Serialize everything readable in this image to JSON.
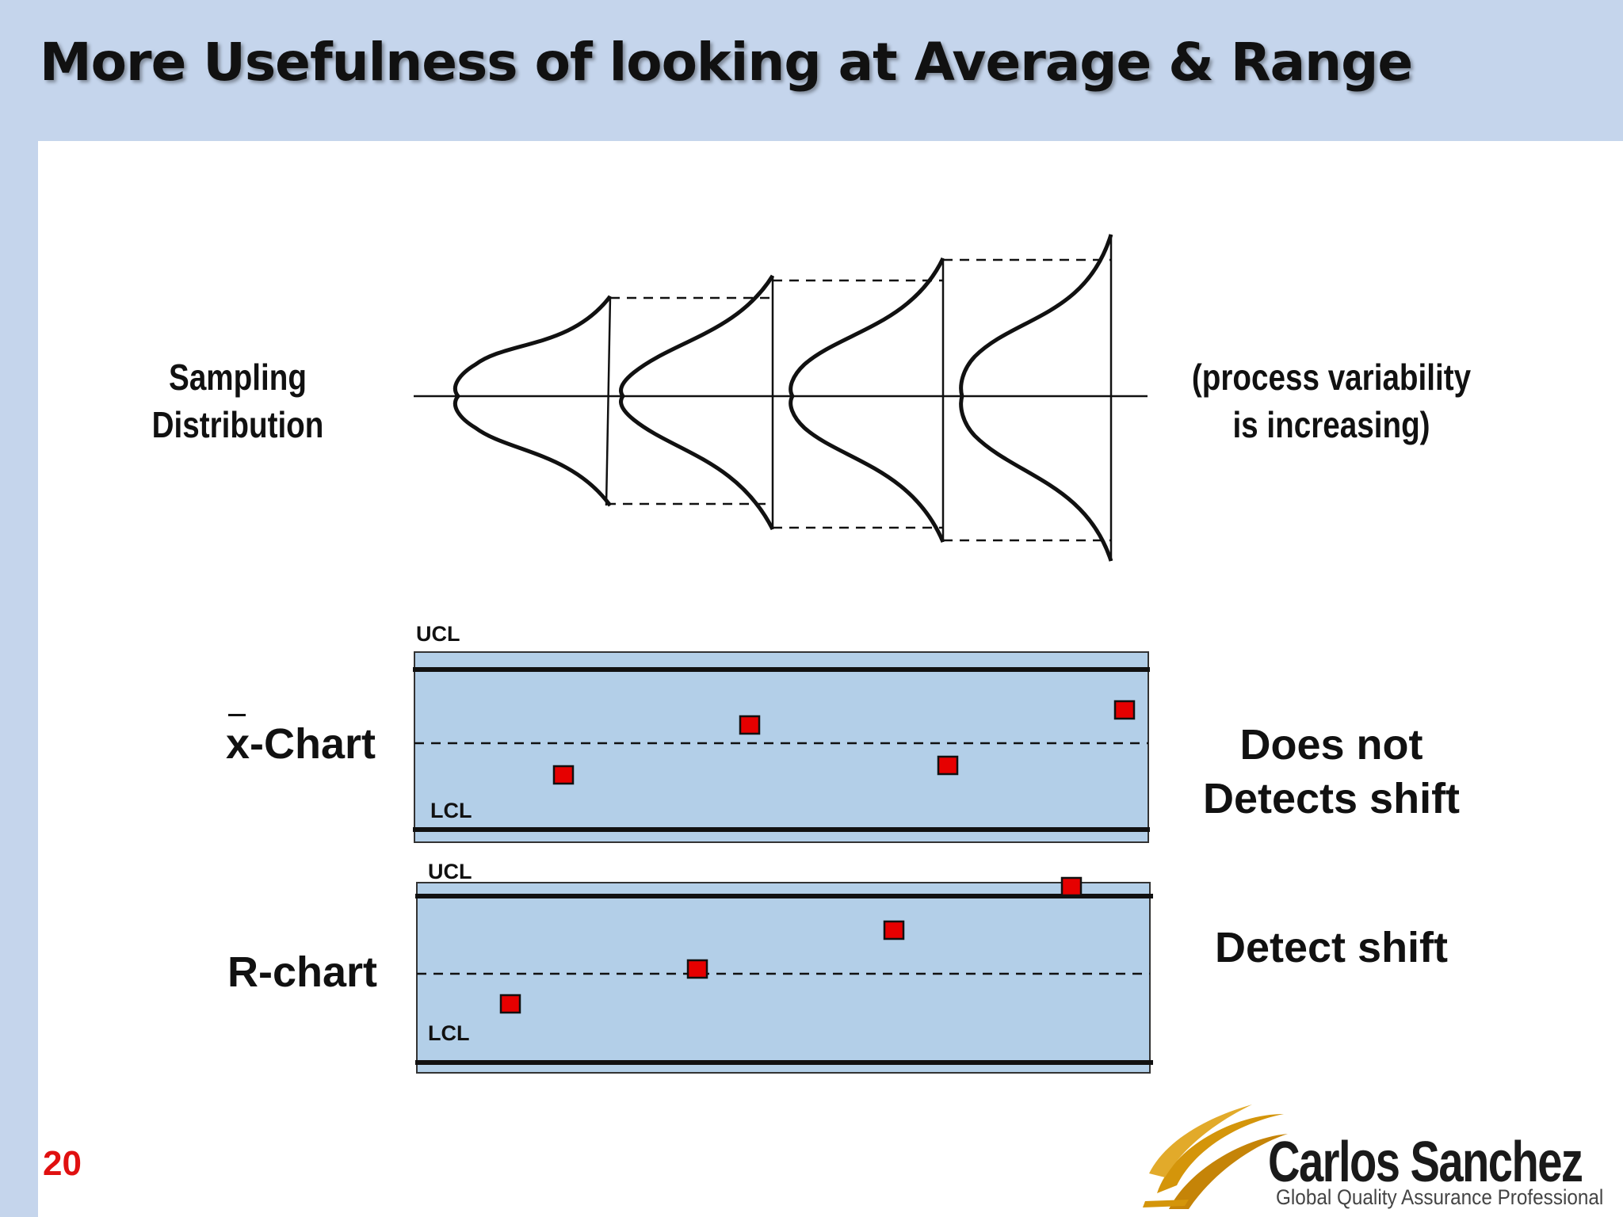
{
  "title": "More Usefulness of looking at Average & Range",
  "sampling": {
    "label_line1": "Sampling",
    "label_line2": "Distribution"
  },
  "variability_note": {
    "line1": "(process variability",
    "line2": "is increasing)"
  },
  "xbar_chart": {
    "label_symbol": "x",
    "label_rest": "-Chart",
    "ucl_label": "UCL",
    "lcl_label": "LCL",
    "verdict_line1": "Does not",
    "verdict_line2": "Detects shift"
  },
  "r_chart": {
    "label": "R-chart",
    "ucl_label": "UCL",
    "lcl_label": "LCL",
    "verdict": "Detect shift"
  },
  "slide_number": "20",
  "logo": {
    "name": "Carlos Sanchez",
    "tagline": "Global Quality Assurance Professional"
  },
  "colors": {
    "header_bg": "#c5d5ec",
    "chart_fill": "#b3cfe8",
    "point_fill": "#e60000",
    "slide_number": "#e01010",
    "logo_gold": "#d4950a"
  }
}
